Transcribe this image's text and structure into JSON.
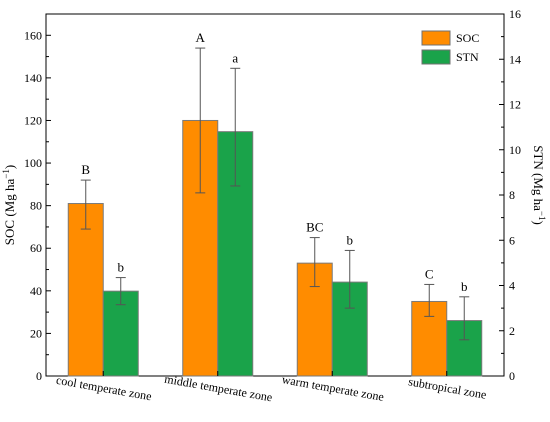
{
  "chart_data": {
    "type": "bar",
    "categories": [
      "cool temperate zone",
      "middle temperate zone",
      "warm temperate zone",
      "subtropical zone"
    ],
    "series": [
      {
        "name": "SOC",
        "axis": "left",
        "color": "#ff8c00",
        "values": [
          81,
          120,
          53,
          35
        ],
        "err_low": [
          69,
          86,
          42,
          28
        ],
        "err_high": [
          92,
          154,
          65,
          43
        ],
        "letters": [
          "B",
          "A",
          "BC",
          "C"
        ]
      },
      {
        "name": "STN",
        "axis": "right",
        "color": "#1aa34a",
        "values": [
          3.75,
          10.8,
          4.15,
          2.45
        ],
        "err_low": [
          3.15,
          8.4,
          3.0,
          1.6
        ],
        "err_high": [
          4.35,
          13.6,
          5.55,
          3.5
        ],
        "letters": [
          "b",
          "a",
          "b",
          "b"
        ]
      }
    ],
    "left_axis": {
      "ylim": [
        0,
        170
      ],
      "ticks": [
        "0",
        "20",
        "40",
        "60",
        "80",
        "100",
        "120",
        "140",
        "160"
      ],
      "label_main": "SOC (Mg ha",
      "label_sup": "−1",
      "label_end": ")"
    },
    "right_axis": {
      "ylim": [
        0,
        16
      ],
      "ticks": [
        "0",
        "2",
        "4",
        "6",
        "8",
        "10",
        "12",
        "14",
        "16"
      ],
      "label_main": "STN (Mg ha",
      "label_sup": "−1",
      "label_end": ")"
    },
    "legend": {
      "position": "top-right",
      "entries": [
        "SOC",
        "STN"
      ]
    },
    "grid": false,
    "xlabel": ""
  }
}
